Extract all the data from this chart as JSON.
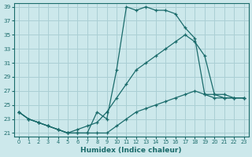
{
  "xlabel": "Humidex (Indice chaleur)",
  "bg_color": "#cce8eb",
  "grid_color": "#aacfd4",
  "line_color": "#1a6b6b",
  "xlim": [
    -0.5,
    23.5
  ],
  "ylim": [
    20.5,
    39.5
  ],
  "yticks": [
    21,
    23,
    25,
    27,
    29,
    31,
    33,
    35,
    37,
    39
  ],
  "xticks": [
    0,
    1,
    2,
    3,
    4,
    5,
    6,
    7,
    8,
    9,
    10,
    11,
    12,
    13,
    14,
    15,
    16,
    17,
    18,
    19,
    20,
    21,
    22,
    23
  ],
  "series": [
    {
      "x": [
        0,
        1,
        2,
        3,
        4,
        5,
        6,
        7,
        8,
        9,
        10,
        11,
        12,
        13,
        14,
        15,
        16,
        17,
        18,
        19,
        20,
        21,
        22,
        23
      ],
      "y": [
        24,
        23,
        22.5,
        22,
        21.5,
        21,
        21,
        21,
        24,
        23,
        30,
        39,
        38.5,
        39,
        38.5,
        38.5,
        38,
        36,
        34.5,
        26.5,
        26,
        26,
        26,
        26
      ]
    },
    {
      "x": [
        0,
        1,
        2,
        3,
        4,
        5,
        6,
        7,
        8,
        9,
        10,
        11,
        12,
        13,
        14,
        15,
        16,
        17,
        18,
        19,
        20,
        21,
        22,
        23
      ],
      "y": [
        24,
        23,
        22.5,
        22,
        21.5,
        21,
        21.5,
        22,
        22.5,
        24,
        26,
        28,
        30,
        31,
        32,
        33,
        34,
        35,
        34,
        32,
        26.5,
        26,
        26,
        26
      ]
    },
    {
      "x": [
        0,
        1,
        2,
        3,
        4,
        5,
        6,
        7,
        8,
        9,
        10,
        11,
        12,
        13,
        14,
        15,
        16,
        17,
        18,
        19,
        20,
        21,
        22,
        23
      ],
      "y": [
        24,
        23,
        22.5,
        22,
        21.5,
        21,
        21,
        21,
        21,
        21,
        22,
        23,
        24,
        24.5,
        25,
        25.5,
        26,
        26.5,
        27,
        26.5,
        26.5,
        26.5,
        26,
        26
      ]
    }
  ]
}
